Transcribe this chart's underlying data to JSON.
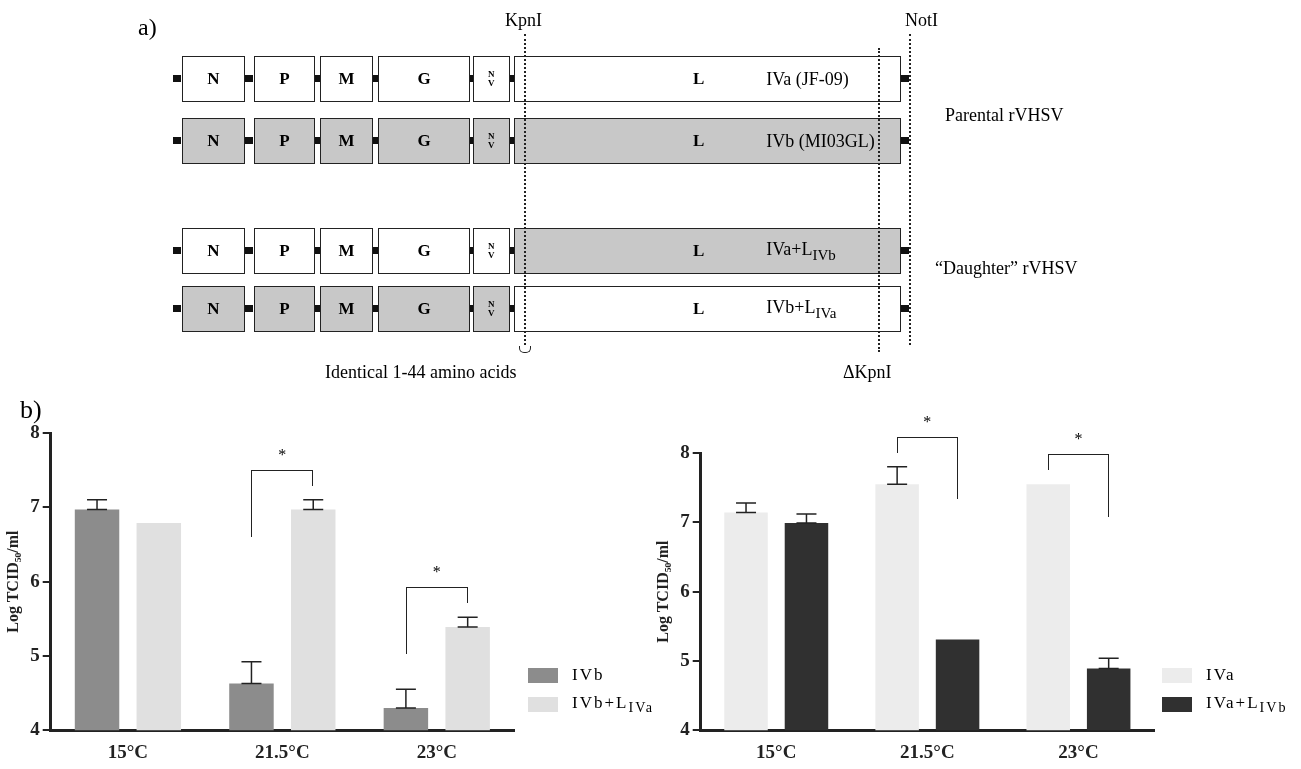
{
  "chart_data": [
    {
      "type": "other",
      "title": "a)",
      "annotations": [
        "KpnI",
        "NotI",
        "N",
        "P",
        "M",
        "G",
        "NV",
        "L",
        "IVa (JF-09)",
        "N",
        "P",
        "M",
        "G",
        "NV",
        "L",
        "IVb (MI03GL)",
        "N",
        "P",
        "M",
        "G",
        "NV",
        "L",
        "IVa+L$_{IVb}$",
        "N",
        "P",
        "M",
        "G",
        "NV",
        "L",
        "IVb+L$_{IVa}$",
        "Parental rVHSV",
        "“Daughter” rVHSV",
        "Identical 1-44 amino acids",
        "ΔKpnI"
      ]
    },
    {
      "type": "bar",
      "title": "b)",
      "ylabel": "Log TCID₅₀/ml",
      "categories": [
        "15°C",
        "21.5°C",
        "23°C"
      ],
      "series": [
        {
          "name": "IVb",
          "color": "#8c8c8c",
          "values": [
            6.97,
            4.63,
            4.3
          ],
          "errors": [
            [
              6.97,
              7.1
            ],
            [
              4.63,
              4.92
            ],
            [
              4.3,
              4.55
            ]
          ]
        },
        {
          "name": "IVb+L$_{IVa}$",
          "color": "#e0e0e0",
          "values": [
            6.79,
            6.97,
            5.39
          ],
          "errors": [
            null,
            [
              6.97,
              7.1
            ],
            [
              5.39,
              5.52
            ]
          ]
        }
      ],
      "ylim": [
        4,
        8
      ],
      "yticks": [
        4,
        5,
        6,
        7,
        8
      ],
      "grid": false,
      "legend": "right",
      "annotations": [
        "*",
        "*"
      ]
    },
    {
      "type": "bar",
      "ylabel": "Log TCID₅₀/ml",
      "categories": [
        "15°C",
        "21.5°C",
        "23°C"
      ],
      "series": [
        {
          "name": "IVa",
          "color": "#ececec",
          "values": [
            7.14,
            7.55,
            7.55
          ],
          "errors": [
            [
              7.14,
              7.28
            ],
            [
              7.55,
              7.8
            ],
            null
          ]
        },
        {
          "name": "IVa+L$_{IVb}$",
          "color": "#303030",
          "values": [
            6.99,
            5.31,
            4.89
          ],
          "errors": [
            [
              6.99,
              7.12
            ],
            null,
            [
              4.89,
              5.04
            ]
          ]
        }
      ],
      "ylim": [
        4,
        8
      ],
      "yticks": [
        4,
        5,
        6,
        7,
        8
      ],
      "grid": false,
      "legend": "right",
      "annotations": [
        "*",
        "*"
      ]
    }
  ]
}
